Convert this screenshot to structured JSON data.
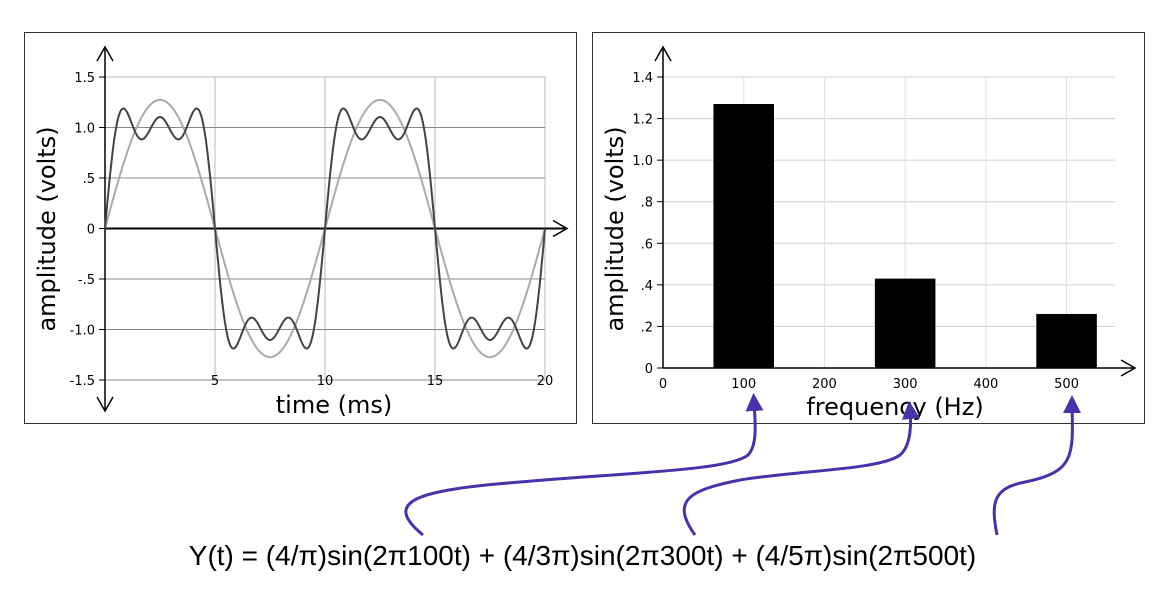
{
  "chart_data": [
    {
      "type": "line",
      "xlabel": "time (ms)",
      "ylabel": "amplitude (volts)",
      "xlim": [
        0,
        20
      ],
      "ylim": [
        -1.5,
        1.5
      ],
      "x_ticks": [
        5,
        10,
        15,
        20
      ],
      "x_tick_labels": [
        "5",
        "10",
        "15",
        "20"
      ],
      "y_ticks": [
        1.5,
        1.0,
        0.5,
        0,
        -0.5,
        -1.0,
        -1.5
      ],
      "y_tick_labels": [
        "1.5",
        "1.0",
        ".5",
        "0",
        "-.5",
        "-1.0",
        "-1.5"
      ],
      "grid": true,
      "series": [
        {
          "color": "#aaaaaa",
          "formula_terms": [
            {
              "coef": 1.2732,
              "freq_hz": 100
            }
          ]
        },
        {
          "color": "#444444",
          "formula_terms": [
            {
              "coef": 1.2732,
              "freq_hz": 100
            },
            {
              "coef": 0.4244,
              "freq_hz": 300
            },
            {
              "coef": 0.2546,
              "freq_hz": 500
            }
          ]
        }
      ]
    },
    {
      "type": "bar",
      "xlabel": "frequency (Hz)",
      "ylabel": "amplitude (volts)",
      "xlim": [
        0,
        560
      ],
      "ylim": [
        0,
        1.4
      ],
      "x_ticks": [
        0,
        100,
        200,
        300,
        400,
        500
      ],
      "x_tick_labels": [
        "0",
        "100",
        "200",
        "300",
        "400",
        "500"
      ],
      "y_ticks": [
        1.4,
        1.2,
        1.0,
        0.8,
        0.6,
        0.4,
        0.2,
        0
      ],
      "y_tick_labels": [
        "1.4",
        "1.2",
        "1.0",
        ".8",
        ".6",
        ".4",
        ".2",
        "0"
      ],
      "grid": true,
      "bars": [
        {
          "x": 100,
          "value": 1.27
        },
        {
          "x": 300,
          "value": 0.43
        },
        {
          "x": 500,
          "value": 0.26
        }
      ],
      "bar_color": "#000000"
    }
  ],
  "formula": "Y(t) = (4/π)sin(2π100t) + (4/3π)sin(2π300t) + (4/5π)sin(2π500t)",
  "arrow_color": "#4433aa"
}
